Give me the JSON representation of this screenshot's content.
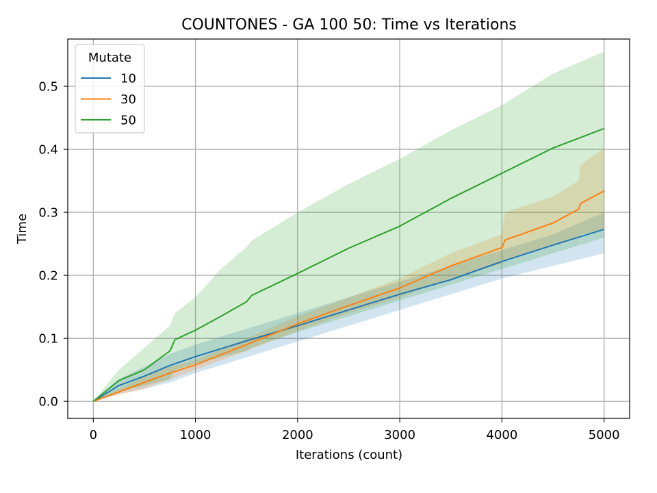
{
  "chart_data": {
    "type": "line",
    "title": "COUNTONES - GA 100 50: Time vs Iterations",
    "xlabel": "Iterations (count)",
    "ylabel": "Time",
    "xlim": [
      -250,
      5250
    ],
    "ylim": [
      -0.027,
      0.575
    ],
    "xticks": [
      0,
      1000,
      2000,
      3000,
      4000,
      5000
    ],
    "xtick_labels": [
      "0",
      "1000",
      "2000",
      "3000",
      "4000",
      "5000"
    ],
    "yticks": [
      0.0,
      0.1,
      0.2,
      0.3,
      0.4,
      0.5
    ],
    "ytick_labels": [
      "0.0",
      "0.1",
      "0.2",
      "0.3",
      "0.4",
      "0.5"
    ],
    "grid": true,
    "legend": {
      "title": "Mutate",
      "placement": "top-left"
    },
    "series": [
      {
        "name": "10",
        "color": "#1f77b4",
        "x": [
          0,
          250,
          500,
          750,
          1000,
          1500,
          2000,
          2500,
          3000,
          3500,
          4000,
          4500,
          5000
        ],
        "mean": [
          0,
          0.025,
          0.04,
          0.057,
          0.071,
          0.096,
          0.12,
          0.145,
          0.17,
          0.193,
          0.222,
          0.248,
          0.273
        ],
        "lower": [
          0,
          0.012,
          0.02,
          0.03,
          0.045,
          0.07,
          0.095,
          0.12,
          0.145,
          0.17,
          0.195,
          0.215,
          0.235
        ],
        "upper": [
          0,
          0.035,
          0.055,
          0.075,
          0.09,
          0.115,
          0.14,
          0.165,
          0.19,
          0.215,
          0.24,
          0.265,
          0.3
        ]
      },
      {
        "name": "30",
        "color": "#ff7f0e",
        "x": [
          0,
          250,
          500,
          750,
          1000,
          1500,
          2000,
          2500,
          3000,
          3500,
          4000,
          4030,
          4500,
          4750,
          4770,
          5000
        ],
        "mean": [
          0,
          0.015,
          0.03,
          0.045,
          0.058,
          0.09,
          0.123,
          0.152,
          0.18,
          0.215,
          0.244,
          0.256,
          0.283,
          0.305,
          0.314,
          0.334
        ],
        "lower": [
          0,
          0.01,
          0.02,
          0.035,
          0.05,
          0.08,
          0.112,
          0.14,
          0.165,
          0.195,
          0.218,
          0.224,
          0.248,
          0.262,
          0.265,
          0.272
        ],
        "upper": [
          0,
          0.02,
          0.04,
          0.055,
          0.065,
          0.1,
          0.135,
          0.165,
          0.195,
          0.235,
          0.265,
          0.3,
          0.325,
          0.35,
          0.375,
          0.402
        ]
      },
      {
        "name": "50",
        "color": "#2ca02c",
        "x": [
          0,
          250,
          500,
          750,
          800,
          1000,
          1250,
          1500,
          1550,
          2000,
          2500,
          3000,
          3500,
          4000,
          4500,
          5000
        ],
        "mean": [
          0,
          0.033,
          0.05,
          0.08,
          0.098,
          0.113,
          0.135,
          0.158,
          0.168,
          0.203,
          0.243,
          0.278,
          0.322,
          0.362,
          0.402,
          0.433
        ],
        "lower": [
          0,
          0.015,
          0.025,
          0.035,
          0.05,
          0.06,
          0.07,
          0.08,
          0.085,
          0.11,
          0.135,
          0.16,
          0.185,
          0.21,
          0.235,
          0.26
        ],
        "upper": [
          0,
          0.05,
          0.085,
          0.12,
          0.14,
          0.165,
          0.21,
          0.245,
          0.255,
          0.3,
          0.345,
          0.385,
          0.43,
          0.47,
          0.52,
          0.555
        ]
      }
    ]
  }
}
